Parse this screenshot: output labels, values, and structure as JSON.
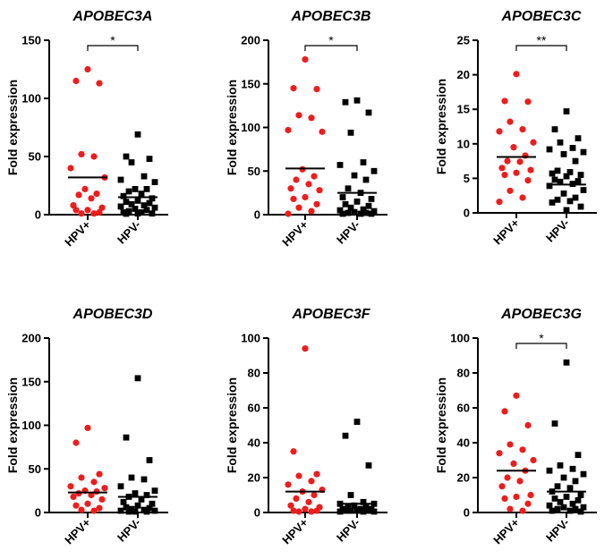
{
  "figure": {
    "ylabel": "Fold expression",
    "point_colors": {
      "HPV+": "#ee1c1c",
      "HPV-": "#000000"
    }
  },
  "chart_data": [
    {
      "type": "scatter",
      "title": "APOBEC3A",
      "ylabel": "Fold expression",
      "ylim": [
        0,
        150
      ],
      "yticks": [
        "0",
        "50",
        "100",
        "150"
      ],
      "categories": [
        "HPV+",
        "HPV-"
      ],
      "series": [
        {
          "name": "HPV+",
          "mean": 32,
          "values": [
            125,
            115,
            113,
            52,
            50,
            40,
            32,
            22,
            18,
            17,
            14,
            8,
            6,
            4,
            4,
            2,
            1,
            1
          ]
        },
        {
          "name": "HPV-",
          "mean": 15,
          "values": [
            69,
            50,
            48,
            45,
            33,
            30,
            28,
            22,
            22,
            20,
            18,
            16,
            14,
            12,
            11,
            10,
            9,
            8,
            7,
            6,
            5,
            4,
            3,
            2,
            2,
            1,
            1,
            0.5
          ]
        }
      ],
      "significance": "*"
    },
    {
      "type": "scatter",
      "title": "APOBEC3B",
      "ylabel": "Fold expression",
      "ylim": [
        0,
        200
      ],
      "yticks": [
        "0",
        "50",
        "100",
        "150",
        "200"
      ],
      "categories": [
        "HPV+",
        "HPV-"
      ],
      "series": [
        {
          "name": "HPV+",
          "mean": 53,
          "values": [
            178,
            145,
            144,
            114,
            111,
            97,
            95,
            52,
            44,
            40,
            35,
            30,
            28,
            20,
            18,
            12,
            8,
            4,
            1
          ]
        },
        {
          "name": "HPV-",
          "mean": 25,
          "values": [
            131,
            129,
            117,
            94,
            60,
            57,
            50,
            45,
            40,
            30,
            25,
            20,
            18,
            15,
            12,
            10,
            8,
            6,
            5,
            4,
            3,
            2,
            2,
            1,
            1,
            0.5
          ]
        }
      ],
      "significance": "*"
    },
    {
      "type": "scatter",
      "title": "APOBEC3C",
      "ylabel": "Fold expression",
      "ylim": [
        0,
        25
      ],
      "yticks": [
        "0",
        "5",
        "10",
        "15",
        "20",
        "25"
      ],
      "categories": [
        "HPV+",
        "HPV-"
      ],
      "series": [
        {
          "name": "HPV+",
          "mean": 8.1,
          "values": [
            20.1,
            16.2,
            16.1,
            13.2,
            12.1,
            11.8,
            10.2,
            9.5,
            8.3,
            7.5,
            7.4,
            6.5,
            6.2,
            5.8,
            5.5,
            4.7,
            3.2,
            2.2,
            1.6
          ]
        },
        {
          "name": "HPV-",
          "mean": 4.1,
          "values": [
            14.7,
            12.1,
            10.8,
            10.2,
            9.4,
            9.2,
            8.8,
            8.5,
            7.5,
            6.1,
            5.9,
            5.7,
            5.5,
            5.3,
            4.8,
            4.6,
            4.5,
            4.2,
            3.9,
            3.3,
            2.8,
            2.2,
            1.9,
            1.7,
            1.5,
            0.9,
            0.4
          ]
        }
      ],
      "significance": "**"
    },
    {
      "type": "scatter",
      "title": "APOBEC3D",
      "ylabel": "Fold expression",
      "ylim": [
        0,
        200
      ],
      "yticks": [
        "0",
        "50",
        "100",
        "150",
        "200"
      ],
      "categories": [
        "HPV+",
        "HPV-"
      ],
      "series": [
        {
          "name": "HPV+",
          "mean": 23,
          "values": [
            97,
            80,
            44,
            40,
            35,
            30,
            28,
            25,
            24,
            22,
            20,
            18,
            15,
            10,
            8,
            5,
            3,
            2
          ]
        },
        {
          "name": "HPV-",
          "mean": 18,
          "values": [
            154,
            86,
            60,
            40,
            38,
            30,
            25,
            22,
            20,
            18,
            15,
            12,
            10,
            8,
            6,
            5,
            4,
            3,
            2,
            2,
            1,
            1,
            0.5
          ]
        }
      ],
      "significance": ""
    },
    {
      "type": "scatter",
      "title": "APOBEC3F",
      "ylabel": "Fold expression",
      "ylim": [
        0,
        100
      ],
      "yticks": [
        "0",
        "20",
        "40",
        "60",
        "80",
        "100"
      ],
      "categories": [
        "HPV+",
        "HPV-"
      ],
      "series": [
        {
          "name": "HPV+",
          "mean": 12,
          "values": [
            94,
            35,
            22,
            21,
            18,
            16,
            13,
            12,
            10,
            8,
            6,
            4,
            3,
            2,
            1,
            1,
            0.5,
            0.5
          ]
        },
        {
          "name": "HPV-",
          "mean": 5,
          "values": [
            52,
            44,
            27,
            10,
            6,
            5,
            5,
            4,
            3,
            3,
            2,
            2,
            2,
            1,
            1,
            1,
            1,
            0.5,
            0.5,
            0.5
          ]
        }
      ],
      "significance": ""
    },
    {
      "type": "scatter",
      "title": "APOBEC3G",
      "ylabel": "Fold expression",
      "ylim": [
        0,
        100
      ],
      "yticks": [
        "0",
        "20",
        "40",
        "60",
        "80",
        "100"
      ],
      "categories": [
        "HPV+",
        "HPV-"
      ],
      "series": [
        {
          "name": "HPV+",
          "mean": 24,
          "values": [
            67,
            58,
            50,
            39,
            36,
            34,
            30,
            28,
            24,
            20,
            18,
            15,
            10,
            9,
            8,
            5,
            2,
            1
          ]
        },
        {
          "name": "HPV-",
          "mean": 12,
          "values": [
            86,
            51,
            33,
            27,
            25,
            24,
            22,
            20,
            18,
            15,
            14,
            12,
            10,
            9,
            8,
            7,
            6,
            5,
            4,
            3,
            3,
            2,
            2,
            1,
            1,
            0.5
          ]
        }
      ],
      "significance": "*"
    }
  ]
}
